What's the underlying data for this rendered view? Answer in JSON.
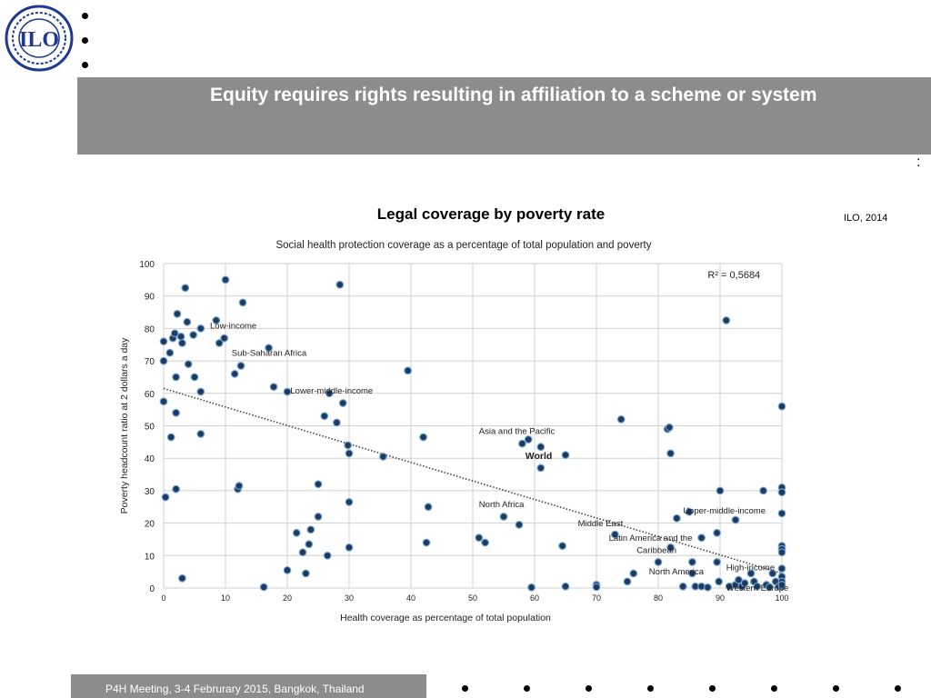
{
  "header": {
    "logo_text": "ILO",
    "title": "Equity requires rights resulting in affiliation to a scheme or system",
    "colon": ":"
  },
  "subtitle": "Legal coverage by poverty rate",
  "source": "ILO, 2014",
  "footer": {
    "text": "P4H Meeting, 3-4 Februrary 2015, Bangkok, Thailand"
  },
  "colors": {
    "banner": "#8c8c8c",
    "point_fill": "#1f3a5f",
    "point_stroke": "#6fa3d0",
    "trend": "#444444",
    "logo": "#1f3b8f"
  },
  "chart_data": {
    "type": "scatter",
    "title": "Social health protection coverage as a percentage of total population and poverty",
    "xlabel": "Health coverage as percentage of total population",
    "ylabel": "Poverty headcount ratio at 2 dollars a day",
    "xlim": [
      0,
      100
    ],
    "ylim": [
      0,
      100
    ],
    "xticks": [
      0,
      10,
      20,
      30,
      40,
      50,
      60,
      70,
      80,
      90,
      100
    ],
    "yticks": [
      0,
      10,
      20,
      30,
      40,
      50,
      60,
      70,
      80,
      90,
      100
    ],
    "grid": true,
    "r_squared": "R² = 0,5684",
    "trendline": {
      "x": [
        0,
        100
      ],
      "y": [
        61.5,
        4.5
      ]
    },
    "annotations": [
      {
        "text": "Low-income",
        "x": 7.5,
        "y": 80,
        "bold": false
      },
      {
        "text": "Sub-Saharan Africa",
        "x": 11,
        "y": 71.5,
        "bold": false
      },
      {
        "text": "Lower-middle-income",
        "x": 20.5,
        "y": 60,
        "bold": false
      },
      {
        "text": "Asia and the Pacific",
        "x": 51,
        "y": 47.5,
        "bold": false
      },
      {
        "text": "World",
        "x": 58.5,
        "y": 39.8,
        "bold": true
      },
      {
        "text": "North Africa",
        "x": 51,
        "y": 25,
        "bold": false
      },
      {
        "text": "Middle East",
        "x": 67,
        "y": 19,
        "bold": false
      },
      {
        "text": "Upper-middle-income",
        "x": 84,
        "y": 23,
        "bold": false
      },
      {
        "text": "Latin America and the",
        "x": 72,
        "y": 14.5,
        "bold": false
      },
      {
        "text": "Caribbean",
        "x": 76.5,
        "y": 10.8,
        "bold": false
      },
      {
        "text": "High-income",
        "x": 91,
        "y": 5.5,
        "bold": false
      },
      {
        "text": "North America",
        "x": 78.5,
        "y": 4.2,
        "bold": false
      },
      {
        "text": "Western Europe",
        "x": 91,
        "y": -0.8,
        "bold": false
      }
    ],
    "points": [
      [
        0,
        76
      ],
      [
        0,
        70
      ],
      [
        0,
        57.5
      ],
      [
        0.3,
        28
      ],
      [
        1,
        72.5
      ],
      [
        1.2,
        46.5
      ],
      [
        1.5,
        77
      ],
      [
        1.8,
        78.5
      ],
      [
        2,
        65
      ],
      [
        2,
        54
      ],
      [
        2,
        30.5
      ],
      [
        2.2,
        84.5
      ],
      [
        2.8,
        77.5
      ],
      [
        3,
        75.5
      ],
      [
        3,
        3
      ],
      [
        3.5,
        92.5
      ],
      [
        3.8,
        82
      ],
      [
        4,
        69
      ],
      [
        4.8,
        78
      ],
      [
        5,
        65
      ],
      [
        6,
        80
      ],
      [
        6,
        60.5
      ],
      [
        6,
        47.5
      ],
      [
        8.5,
        82.5
      ],
      [
        9,
        75.5
      ],
      [
        9.8,
        77
      ],
      [
        10,
        95
      ],
      [
        11.5,
        66
      ],
      [
        12,
        30.5
      ],
      [
        12.2,
        31.5
      ],
      [
        12.5,
        68.5
      ],
      [
        12.8,
        88
      ],
      [
        17,
        74
      ],
      [
        17.8,
        62
      ],
      [
        20,
        60.5
      ],
      [
        20,
        5.5
      ],
      [
        16.2,
        0.3
      ],
      [
        21.5,
        17
      ],
      [
        22.5,
        11
      ],
      [
        23,
        4.5
      ],
      [
        23.5,
        13.5
      ],
      [
        23.8,
        18
      ],
      [
        25,
        32
      ],
      [
        25,
        22
      ],
      [
        26,
        53
      ],
      [
        26.5,
        10
      ],
      [
        26.8,
        60
      ],
      [
        28,
        51
      ],
      [
        28.5,
        93.5
      ],
      [
        29,
        57
      ],
      [
        29.8,
        44
      ],
      [
        30,
        41.5
      ],
      [
        30,
        26.5
      ],
      [
        30,
        12.5
      ],
      [
        35.5,
        40.5
      ],
      [
        39.5,
        67
      ],
      [
        42,
        46.5
      ],
      [
        42.5,
        14
      ],
      [
        42.8,
        25
      ],
      [
        51,
        15.5
      ],
      [
        52,
        14
      ],
      [
        55,
        22
      ],
      [
        57.5,
        19.5
      ],
      [
        58,
        44.5
      ],
      [
        59,
        45.8
      ],
      [
        59.5,
        0.2
      ],
      [
        61,
        43.5
      ],
      [
        61,
        37
      ],
      [
        64.5,
        13
      ],
      [
        65,
        41
      ],
      [
        65,
        0.5
      ],
      [
        70,
        1
      ],
      [
        70,
        0.3
      ],
      [
        73,
        16.5
      ],
      [
        74,
        52
      ],
      [
        75,
        2
      ],
      [
        76,
        4.5
      ],
      [
        80,
        8
      ],
      [
        81.5,
        49
      ],
      [
        81.8,
        49.5
      ],
      [
        82,
        41.5
      ],
      [
        82,
        12.5
      ],
      [
        83,
        21.5
      ],
      [
        84,
        0.5
      ],
      [
        85,
        23.5
      ],
      [
        85.5,
        4.5
      ],
      [
        85.5,
        8
      ],
      [
        86,
        0.5
      ],
      [
        87,
        15.5
      ],
      [
        87,
        0.5
      ],
      [
        88,
        0.2
      ],
      [
        89.5,
        17
      ],
      [
        89.5,
        8
      ],
      [
        89.8,
        2
      ],
      [
        90,
        30
      ],
      [
        91,
        82.5
      ],
      [
        91.5,
        0.5
      ],
      [
        92.5,
        21
      ],
      [
        92.5,
        1
      ],
      [
        93,
        2.5
      ],
      [
        93.5,
        0.5
      ],
      [
        94,
        1.5
      ],
      [
        95,
        4.5
      ],
      [
        95.5,
        2
      ],
      [
        96,
        0.5
      ],
      [
        97,
        30
      ],
      [
        97.5,
        1
      ],
      [
        98,
        0.3
      ],
      [
        98.5,
        4.5
      ],
      [
        99,
        2
      ],
      [
        99.5,
        0.5
      ],
      [
        100,
        56
      ],
      [
        100,
        31
      ],
      [
        100,
        29.5
      ],
      [
        100,
        23
      ],
      [
        100,
        13
      ],
      [
        100,
        12
      ],
      [
        100,
        11
      ],
      [
        100,
        6
      ],
      [
        100,
        3.5
      ],
      [
        100,
        2
      ],
      [
        100,
        0.5
      ],
      [
        100,
        1
      ]
    ]
  }
}
